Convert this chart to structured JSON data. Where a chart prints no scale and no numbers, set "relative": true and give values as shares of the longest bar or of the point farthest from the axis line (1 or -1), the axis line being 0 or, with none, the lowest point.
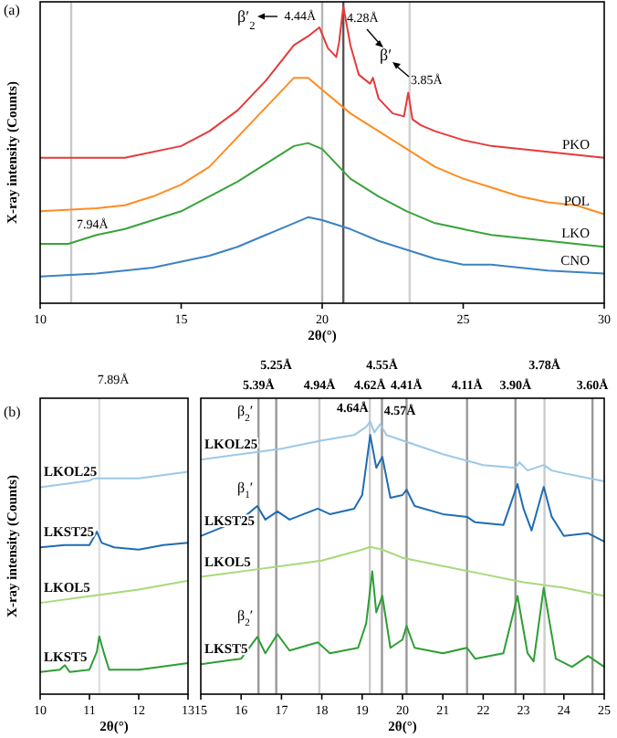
{
  "chart_data": [
    {
      "type": "line",
      "title": "(a)",
      "xlabel": "2θ(°)",
      "ylabel": "X-ray intensity (Counts)",
      "relative": true,
      "xlim": [
        10,
        30
      ],
      "xticks": [
        10,
        15,
        20,
        25,
        30
      ],
      "grid": false,
      "marker": "none",
      "line_style": "solid",
      "annotations": [
        "β′$_{2}$",
        "β′"
      ],
      "ref_lines": [
        {
          "axis": "x",
          "value": 11.1,
          "label": "7.94Å",
          "color": "#c8c8c8"
        },
        {
          "axis": "x",
          "value": 20.0,
          "label": "4.44Å",
          "color": "#b4b4b4"
        },
        {
          "axis": "x",
          "value": 20.75,
          "label": "4.28Å",
          "color": "#555555"
        },
        {
          "axis": "x",
          "value": 23.1,
          "label": "3.85Å",
          "color": "#d0d0d0"
        }
      ],
      "series": [
        {
          "name": "PKO",
          "color": "#e53a3a",
          "x": [
            10,
            13,
            15,
            16,
            17,
            18,
            18.5,
            19,
            19.5,
            19.9,
            20.2,
            20.5,
            20.6,
            20.75,
            21,
            21.3,
            21.7,
            21.8,
            22,
            22.5,
            22.9,
            23.05,
            23.2,
            23.5,
            24,
            25,
            26,
            27,
            28,
            30
          ],
          "values": [
            0.49,
            0.49,
            0.53,
            0.58,
            0.65,
            0.75,
            0.81,
            0.87,
            0.9,
            0.93,
            0.86,
            0.83,
            0.88,
            1.0,
            0.87,
            0.77,
            0.74,
            0.76,
            0.69,
            0.64,
            0.63,
            0.71,
            0.62,
            0.6,
            0.58,
            0.55,
            0.53,
            0.52,
            0.51,
            0.49
          ]
        },
        {
          "name": "POL",
          "color": "#ff8c21",
          "x": [
            10,
            12,
            13,
            14,
            15,
            16,
            17,
            18,
            18.5,
            19,
            19.5,
            20,
            20.5,
            21,
            22,
            23,
            24,
            25,
            26,
            27,
            28,
            29,
            30
          ],
          "values": [
            0.31,
            0.32,
            0.33,
            0.36,
            0.4,
            0.46,
            0.56,
            0.66,
            0.71,
            0.76,
            0.76,
            0.72,
            0.68,
            0.64,
            0.58,
            0.52,
            0.46,
            0.42,
            0.39,
            0.36,
            0.34,
            0.33,
            0.3
          ]
        },
        {
          "name": "LKO",
          "color": "#38a33a",
          "x": [
            10,
            11,
            12,
            13,
            14,
            15,
            16,
            17,
            18,
            19,
            19.5,
            20,
            20.5,
            21,
            22,
            23,
            24,
            25,
            26,
            27,
            28,
            30
          ],
          "values": [
            0.2,
            0.2,
            0.23,
            0.25,
            0.28,
            0.31,
            0.36,
            0.41,
            0.47,
            0.53,
            0.54,
            0.52,
            0.47,
            0.42,
            0.36,
            0.31,
            0.27,
            0.25,
            0.23,
            0.22,
            0.21,
            0.19
          ]
        },
        {
          "name": "CNO",
          "color": "#3b82c4",
          "x": [
            10,
            12,
            13,
            14,
            15,
            16,
            17,
            18,
            19,
            19.5,
            20,
            21,
            22,
            23,
            24,
            25,
            26,
            27,
            28,
            30
          ],
          "values": [
            0.09,
            0.1,
            0.11,
            0.12,
            0.14,
            0.16,
            0.19,
            0.23,
            0.27,
            0.29,
            0.28,
            0.25,
            0.21,
            0.18,
            0.15,
            0.13,
            0.13,
            0.12,
            0.11,
            0.1
          ]
        }
      ]
    },
    {
      "type": "line",
      "title": "(b)",
      "xlabel": "2θ(°)",
      "ylabel": "X-ray intensity (Counts)",
      "relative": true,
      "xlim": [
        10,
        13
      ],
      "xticks": [
        10,
        11,
        12,
        13
      ],
      "grid": false,
      "marker": "none",
      "line_style": "solid",
      "ref_lines": [
        {
          "axis": "x",
          "value": 11.2,
          "label": "7.89Å",
          "color": "#e0e0e0"
        }
      ],
      "series": [
        {
          "name": "LKOL25",
          "color": "#9cc8e8",
          "x": [
            10,
            11,
            11.1,
            12,
            13
          ],
          "values": [
            0.93,
            0.96,
            0.97,
            0.97,
            1.0
          ]
        },
        {
          "name": "LKST25",
          "color": "#1f6db3",
          "x": [
            10,
            10.5,
            11,
            11.15,
            11.25,
            11.5,
            12,
            12.5,
            13
          ],
          "values": [
            0.66,
            0.67,
            0.67,
            0.73,
            0.68,
            0.66,
            0.65,
            0.67,
            0.68
          ]
        },
        {
          "name": "LKOL5",
          "color": "#a8d97a",
          "x": [
            10,
            11,
            12,
            13
          ],
          "values": [
            0.41,
            0.44,
            0.47,
            0.51
          ]
        },
        {
          "name": "LKST5",
          "color": "#2e9e35",
          "x": [
            10,
            10.4,
            10.5,
            10.6,
            11,
            11.15,
            11.2,
            11.3,
            11.4,
            12,
            13
          ],
          "values": [
            0.1,
            0.11,
            0.13,
            0.1,
            0.11,
            0.19,
            0.26,
            0.18,
            0.11,
            0.11,
            0.14
          ]
        }
      ]
    },
    {
      "type": "line",
      "xlabel": "2θ(°)",
      "relative": true,
      "xlim": [
        15,
        25
      ],
      "xticks": [
        15,
        16,
        17,
        18,
        19,
        20,
        21,
        22,
        23,
        24,
        25
      ],
      "grid": false,
      "marker": "none",
      "line_style": "solid",
      "annotations": [
        {
          "text": "4.64Å",
          "x": 19.2,
          "y": 1.0
        },
        {
          "text": "4.57Å",
          "x": 19.45,
          "y": 0.99
        },
        "β$_{2}$′",
        "β$_{1}$′",
        "β$_{2}$′"
      ],
      "ref_lines": [
        {
          "axis": "x",
          "value": 16.43,
          "label": "5.39Å",
          "color": "#999999"
        },
        {
          "axis": "x",
          "value": 16.87,
          "label": "5.25Å",
          "color": "#999999"
        },
        {
          "axis": "x",
          "value": 17.94,
          "label": "4.94Å",
          "color": "#cccccc"
        },
        {
          "axis": "x",
          "value": 19.19,
          "label": "4.62Å",
          "color": "#cccccc"
        },
        {
          "axis": "x",
          "value": 19.49,
          "label": "4.55Å",
          "color": "#999999"
        },
        {
          "axis": "x",
          "value": 20.1,
          "label": "4.41Å",
          "color": "#999999"
        },
        {
          "axis": "x",
          "value": 21.6,
          "label": "4.11Å",
          "color": "#999999"
        },
        {
          "axis": "x",
          "value": 22.8,
          "label": "3.90Å",
          "color": "#999999"
        },
        {
          "axis": "x",
          "value": 23.52,
          "label": "3.78Å",
          "color": "#cccccc"
        },
        {
          "axis": "x",
          "value": 24.71,
          "label": "3.60Å",
          "color": "#999999"
        }
      ],
      "series": [
        {
          "name": "LKOL25",
          "color": "#9cc8e8",
          "x": [
            15,
            16,
            17,
            18,
            18.8,
            19.1,
            19.2,
            19.3,
            19.45,
            19.6,
            20,
            21,
            22,
            22.8,
            22.9,
            23.1,
            23.5,
            23.7,
            24,
            25
          ],
          "values": [
            0.86,
            0.88,
            0.9,
            0.93,
            0.95,
            0.98,
            1.0,
            0.96,
            0.99,
            0.95,
            0.93,
            0.88,
            0.84,
            0.83,
            0.85,
            0.82,
            0.84,
            0.82,
            0.81,
            0.78
          ]
        },
        {
          "name": "LKST25",
          "color": "#1f6db3",
          "x": [
            15,
            16,
            16.4,
            16.6,
            16.9,
            17.2,
            17.9,
            18.2,
            18.8,
            19,
            19.2,
            19.35,
            19.5,
            19.7,
            20,
            20.1,
            20.3,
            21,
            21.6,
            21.8,
            22.5,
            22.85,
            23,
            23.2,
            23.5,
            23.7,
            24,
            24.6,
            25
          ],
          "values": [
            0.58,
            0.64,
            0.69,
            0.64,
            0.67,
            0.64,
            0.68,
            0.66,
            0.68,
            0.73,
            0.95,
            0.83,
            0.87,
            0.72,
            0.73,
            0.75,
            0.69,
            0.66,
            0.65,
            0.63,
            0.62,
            0.77,
            0.68,
            0.6,
            0.76,
            0.65,
            0.58,
            0.59,
            0.56
          ]
        },
        {
          "name": "LKOL5",
          "color": "#a8d97a",
          "x": [
            15,
            16,
            17,
            18,
            19,
            19.2,
            19.5,
            20,
            21,
            22,
            23,
            24,
            25
          ],
          "values": [
            0.43,
            0.45,
            0.47,
            0.49,
            0.53,
            0.54,
            0.53,
            0.5,
            0.47,
            0.44,
            0.41,
            0.39,
            0.36
          ]
        },
        {
          "name": "LKST5",
          "color": "#2e9e35",
          "x": [
            15,
            16,
            16.4,
            16.6,
            16.9,
            17.2,
            17.9,
            18.2,
            18.9,
            19.1,
            19.25,
            19.35,
            19.5,
            19.7,
            20,
            20.1,
            20.3,
            21,
            21.6,
            21.8,
            22.5,
            22.85,
            23.1,
            23.25,
            23.5,
            23.8,
            24.2,
            24.6,
            25
          ],
          "values": [
            0.11,
            0.13,
            0.21,
            0.15,
            0.22,
            0.16,
            0.19,
            0.15,
            0.17,
            0.26,
            0.45,
            0.3,
            0.36,
            0.17,
            0.2,
            0.25,
            0.17,
            0.15,
            0.17,
            0.13,
            0.15,
            0.36,
            0.15,
            0.12,
            0.39,
            0.13,
            0.1,
            0.14,
            0.1
          ]
        }
      ]
    }
  ]
}
